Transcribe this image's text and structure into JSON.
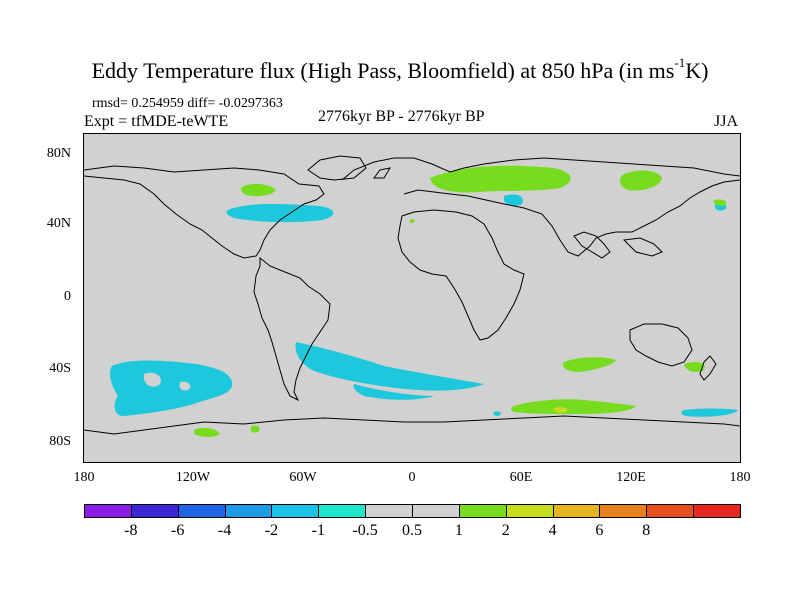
{
  "title": {
    "main": "Eddy Temperature flux (High Pass, Bloomfield) at 850 hPa (in ms",
    "sup": "-1",
    "tail": "K)"
  },
  "stats": "rmsd= 0.254959 diff= -0.0297363",
  "expt": "Expt = tfMDE-teWTE",
  "period": "2776kyr BP - 2776kyr BP",
  "season": "JJA",
  "axes": {
    "lat_labels": [
      "80N",
      "40N",
      "0",
      "40S",
      "80S"
    ],
    "lon_labels": [
      "180",
      "120W",
      "60W",
      "0",
      "60E",
      "120E",
      "180"
    ]
  },
  "colorbar": {
    "colors": [
      "#8a1ee6",
      "#3c28d2",
      "#1e64e6",
      "#1e9be6",
      "#1ec2e6",
      "#1ee6c8",
      "#d1d1d1",
      "#d1d1d1",
      "#78dc1e",
      "#c8dc1e",
      "#e6b41e",
      "#e6821e",
      "#e6501e",
      "#e6281e"
    ],
    "labels": [
      "-8",
      "-6",
      "-4",
      "-2",
      "-1",
      "-0.5",
      "0.5",
      "1",
      "2",
      "4",
      "6",
      "8"
    ]
  },
  "map_colors": {
    "negative": "#1ec8dc",
    "positive": "#78dc1e",
    "strong_positive": "#c8dc1e",
    "background": "#d1d1d1"
  }
}
